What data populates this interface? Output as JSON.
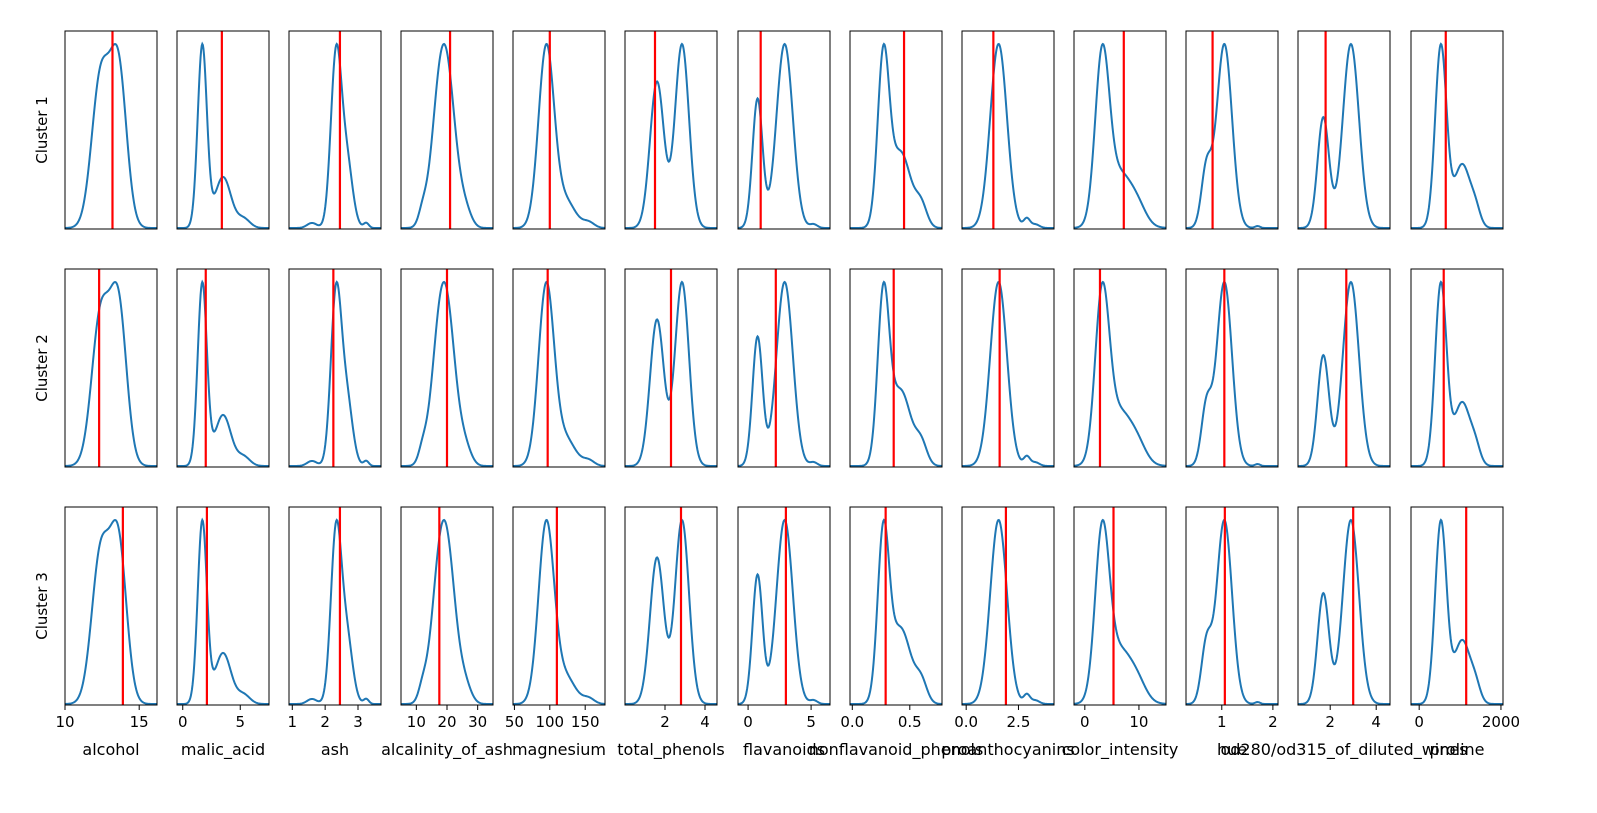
{
  "figure": {
    "row_labels": [
      "Cluster 1",
      "Cluster 2",
      "Cluster 3"
    ]
  },
  "chart_data": {
    "type": "small-multiples density (KDE) with marker lines",
    "rows": [
      "Cluster 1",
      "Cluster 2",
      "Cluster 3"
    ],
    "density_color": "#1f77b4",
    "marker_color": "#ff0000",
    "y_axis": "hidden (no ticks)",
    "features": [
      {
        "name": "alcohol",
        "xlim": [
          10.0,
          16.2
        ],
        "ticks": [
          10,
          15
        ],
        "tick_labels": [
          "10",
          "15"
        ],
        "peaks": [
          [
            12.4,
            0.6,
            0.95
          ],
          [
            13.6,
            0.55,
            1.0
          ]
        ],
        "markers": [
          13.2,
          12.3,
          13.9
        ]
      },
      {
        "name": "malic_acid",
        "xlim": [
          -0.5,
          7.5
        ],
        "ticks": [
          0,
          5
        ],
        "tick_labels": [
          "0",
          "5"
        ],
        "peaks": [
          [
            1.7,
            0.4,
            1.0
          ],
          [
            3.5,
            0.7,
            0.28
          ],
          [
            5.3,
            0.55,
            0.05
          ]
        ],
        "markers": [
          3.4,
          2.0,
          2.1
        ]
      },
      {
        "name": "ash",
        "xlim": [
          0.9,
          3.7
        ],
        "ticks": [
          1,
          2,
          3
        ],
        "tick_labels": [
          "1",
          "2",
          "3"
        ],
        "peaks": [
          [
            2.33,
            0.16,
            1.0
          ],
          [
            2.65,
            0.18,
            0.4
          ],
          [
            1.6,
            0.15,
            0.03
          ],
          [
            3.25,
            0.08,
            0.03
          ]
        ],
        "markers": [
          2.45,
          2.25,
          2.45
        ]
      },
      {
        "name": "alcalinity_of_ash",
        "xlim": [
          5.0,
          35.0
        ],
        "ticks": [
          10,
          20,
          30
        ],
        "tick_labels": [
          "10",
          "20",
          "30"
        ],
        "peaks": [
          [
            17.5,
            2.8,
            0.7
          ],
          [
            20.5,
            2.8,
            0.7
          ],
          [
            12.0,
            1.3,
            0.08
          ],
          [
            26.0,
            2.0,
            0.1
          ]
        ],
        "markers": [
          21.0,
          20.0,
          17.5
        ]
      },
      {
        "name": "magnesium",
        "xlim": [
          48.0,
          178.0
        ],
        "ticks": [
          50,
          100,
          150
        ],
        "tick_labels": [
          "50",
          "100",
          "150"
        ],
        "peaks": [
          [
            95.0,
            11.0,
            1.0
          ],
          [
            122.0,
            14.0,
            0.15
          ],
          [
            155.0,
            8.0,
            0.03
          ]
        ],
        "markers": [
          100.0,
          97.0,
          110.0
        ]
      },
      {
        "name": "total_phenols",
        "xlim": [
          0.0,
          4.6
        ],
        "ticks": [
          2,
          4
        ],
        "tick_labels": [
          "2",
          "4"
        ],
        "peaks": [
          [
            1.6,
            0.35,
            0.78
          ],
          [
            2.85,
            0.35,
            0.98
          ]
        ],
        "markers": [
          1.5,
          2.3,
          2.8
        ]
      },
      {
        "name": "flavanoids",
        "xlim": [
          -0.8,
          6.5
        ],
        "ticks": [
          0,
          5
        ],
        "tick_labels": [
          "0",
          "5"
        ],
        "peaks": [
          [
            0.75,
            0.4,
            0.7
          ],
          [
            2.9,
            0.65,
            1.0
          ],
          [
            5.2,
            0.3,
            0.02
          ]
        ],
        "markers": [
          1.0,
          2.2,
          3.0
        ]
      },
      {
        "name": "nonflavanoid_phenols",
        "xlim": [
          -0.02,
          0.78
        ],
        "ticks": [
          0.0,
          0.5
        ],
        "tick_labels": [
          "0.0",
          "0.5"
        ],
        "peaks": [
          [
            0.27,
            0.05,
            0.98
          ],
          [
            0.42,
            0.09,
            0.45
          ],
          [
            0.6,
            0.05,
            0.12
          ]
        ],
        "markers": [
          0.45,
          0.36,
          0.29
        ]
      },
      {
        "name": "proanthocyanins",
        "xlim": [
          -0.2,
          4.2
        ],
        "ticks": [
          0.0,
          2.5
        ],
        "tick_labels": [
          "0.0",
          "2.5"
        ],
        "peaks": [
          [
            1.55,
            0.4,
            1.0
          ],
          [
            2.9,
            0.15,
            0.05
          ],
          [
            3.3,
            0.2,
            0.02
          ]
        ],
        "markers": [
          1.3,
          1.6,
          1.9
        ]
      },
      {
        "name": "color_intensity",
        "xlim": [
          -2.0,
          15.0
        ],
        "ticks": [
          0,
          10
        ],
        "tick_labels": [
          "0",
          "10"
        ],
        "peaks": [
          [
            3.2,
            1.3,
            0.95
          ],
          [
            6.5,
            2.5,
            0.32
          ],
          [
            10.0,
            1.5,
            0.06
          ]
        ],
        "markers": [
          7.2,
          2.8,
          5.3
        ]
      },
      {
        "name": "hue",
        "xlim": [
          0.3,
          2.1
        ],
        "ticks": [
          1,
          2
        ],
        "tick_labels": [
          "1",
          "2"
        ],
        "peaks": [
          [
            1.05,
            0.15,
            0.95
          ],
          [
            0.7,
            0.1,
            0.3
          ],
          [
            1.7,
            0.05,
            0.01
          ]
        ],
        "markers": [
          0.82,
          1.05,
          1.06
        ]
      },
      {
        "name": "od280/od315_of_diluted_wines",
        "xlim": [
          0.6,
          4.6
        ],
        "ticks": [
          2,
          4
        ],
        "tick_labels": [
          "2",
          "4"
        ],
        "peaks": [
          [
            1.7,
            0.25,
            0.6
          ],
          [
            2.9,
            0.35,
            1.0
          ]
        ],
        "markers": [
          1.8,
          2.7,
          3.0
        ]
      },
      {
        "name": "proline",
        "xlim": [
          -200.0,
          2050.0
        ],
        "ticks": [
          0,
          2000
        ],
        "tick_labels": [
          "0",
          "2000"
        ],
        "peaks": [
          [
            530.0,
            140.0,
            1.0
          ],
          [
            1050.0,
            200.0,
            0.35
          ],
          [
            1380.0,
            120.0,
            0.08
          ]
        ],
        "markers": [
          650.0,
          600.0,
          1150.0
        ]
      }
    ]
  }
}
